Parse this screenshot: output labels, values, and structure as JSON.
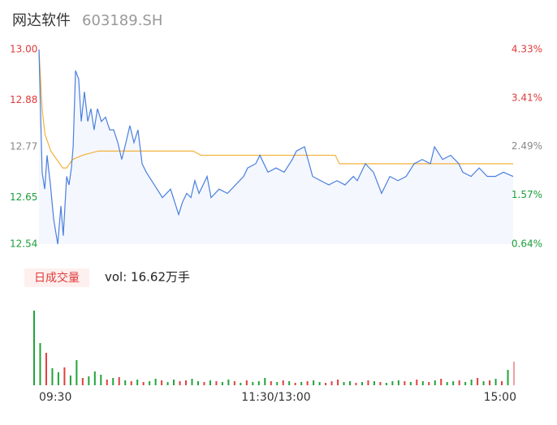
{
  "header": {
    "name": "网达软件",
    "code": "603189.SH"
  },
  "chart_data": [
    {
      "type": "line",
      "xlim": [
        0,
        240
      ],
      "xticks": [
        {
          "value": 0,
          "label": "09:30"
        },
        {
          "value": 120,
          "label": "11:30/13:00"
        },
        {
          "value": 240,
          "label": "15:00"
        }
      ],
      "ylim": [
        12.54,
        13.0
      ],
      "yticks": [
        {
          "value": 13.0,
          "label": "13.00"
        },
        12.88,
        12.77,
        12.65,
        12.54
      ],
      "ytick_colors": [
        "#e03a3a",
        "#e03a3a",
        "#888888",
        "#1a9e3a",
        "#1a9e3a"
      ],
      "y2lim": [
        0.64,
        4.33
      ],
      "y2ticks": [
        {
          "value": 4.33,
          "label": "4.33%"
        },
        {
          "value": 3.41,
          "label": "3.41%"
        },
        {
          "value": 2.49,
          "label": "2.49%"
        },
        {
          "value": 1.57,
          "label": "1.57%"
        },
        {
          "value": 0.64,
          "label": "0.64%"
        }
      ],
      "fill": "#f4f7fd",
      "lines": [
        {
          "color": "#4a7fe0",
          "x": [
            0,
            1.6,
            2.9,
            4.1,
            5.8,
            7.4,
            9.5,
            11.1,
            12.3,
            14.0,
            15.2,
            16.4,
            17.3,
            18.5,
            20.1,
            21.4,
            23.0,
            24.7,
            26.3,
            27.9,
            29.6,
            31.6,
            33.7,
            35.8,
            37.8,
            39.9,
            41.9,
            44.0,
            46.0,
            48.1,
            50.1,
            52.2,
            54.3,
            58.4,
            62.5,
            66.6,
            70.7,
            72.7,
            74.8,
            76.9,
            78.9,
            81.0,
            85.1,
            87.1,
            91.2,
            95.4,
            99.5,
            103.6,
            105.6,
            109.7,
            111.8,
            115.9,
            120.0,
            124.1,
            128.2,
            130.3,
            134.4,
            138.5,
            142.6,
            146.7,
            150.8,
            154.9,
            159.1,
            161.1,
            165.2,
            169.3,
            173.4,
            177.6,
            181.7,
            185.8,
            189.9,
            194.0,
            198.1,
            200.2,
            204.3,
            208.4,
            212.5,
            214.5,
            218.7,
            222.8,
            226.9,
            231.0,
            235.1,
            240
          ],
          "values": [
            13.0,
            12.71,
            12.67,
            12.75,
            12.68,
            12.6,
            12.54,
            12.63,
            12.56,
            12.7,
            12.68,
            12.72,
            12.77,
            12.95,
            12.93,
            12.83,
            12.9,
            12.83,
            12.86,
            12.81,
            12.86,
            12.83,
            12.84,
            12.81,
            12.81,
            12.78,
            12.74,
            12.78,
            12.82,
            12.78,
            12.81,
            12.73,
            12.71,
            12.68,
            12.65,
            12.67,
            12.61,
            12.64,
            12.66,
            12.65,
            12.69,
            12.66,
            12.7,
            12.65,
            12.67,
            12.66,
            12.68,
            12.7,
            12.72,
            12.73,
            12.75,
            12.71,
            12.72,
            12.71,
            12.74,
            12.76,
            12.77,
            12.7,
            12.69,
            12.68,
            12.69,
            12.68,
            12.7,
            12.69,
            12.73,
            12.71,
            12.66,
            12.7,
            12.69,
            12.7,
            12.73,
            12.74,
            12.73,
            12.77,
            12.74,
            12.75,
            12.73,
            12.71,
            12.7,
            12.72,
            12.7,
            12.7,
            12.71,
            12.7
          ]
        },
        {
          "color": "#f2b23a",
          "x": [
            0,
            1.6,
            3,
            6,
            9,
            12,
            14,
            17,
            22,
            30,
            78,
            82,
            150,
            152,
            240
          ],
          "values": [
            13.0,
            12.86,
            12.8,
            12.76,
            12.74,
            12.72,
            12.72,
            12.74,
            12.75,
            12.76,
            12.76,
            12.75,
            12.75,
            12.73,
            12.73
          ]
        }
      ]
    },
    {
      "type": "bar",
      "title": "日成交量",
      "subtitle": "vol: 16.62万手",
      "ylim": [
        0,
        9200
      ],
      "values": [
        9200,
        5200,
        4000,
        2100,
        1600,
        2200,
        1200,
        3100,
        900,
        1100,
        1700,
        1300,
        700,
        900,
        1000,
        600,
        500,
        700,
        400,
        500,
        800,
        600,
        400,
        700,
        500,
        600,
        800,
        500,
        400,
        600,
        500,
        400,
        700,
        500,
        300,
        600,
        400,
        500,
        900,
        500,
        400,
        600,
        500,
        300,
        400,
        500,
        600,
        400,
        300,
        500,
        700,
        400,
        500,
        300,
        400,
        600,
        500,
        400,
        300,
        500,
        600,
        500,
        400,
        700,
        500,
        400,
        600,
        800,
        400,
        500,
        600,
        400,
        700,
        900,
        500,
        600,
        800,
        500,
        1900,
        2900
      ],
      "colors": [
        "#22a33a",
        "#22a33a",
        "#e0403f",
        "#22a33a",
        "#22a33a",
        "#e0403f",
        "#22a33a",
        "#22a33a",
        "#e0403f",
        "#22a33a",
        "#22a33a",
        "#22a33a",
        "#e0403f",
        "#22a33a",
        "#e0403f",
        "#22a33a",
        "#e0403f",
        "#22a33a",
        "#e0403f",
        "#22a33a",
        "#22a33a",
        "#e0403f",
        "#22a33a",
        "#22a33a",
        "#e0403f",
        "#e0403f",
        "#22a33a",
        "#22a33a",
        "#e0403f",
        "#22a33a",
        "#e0403f",
        "#22a33a",
        "#22a33a",
        "#e0403f",
        "#22a33a",
        "#e0403f",
        "#22a33a",
        "#22a33a",
        "#22a33a",
        "#e0403f",
        "#22a33a",
        "#e0403f",
        "#22a33a",
        "#e0403f",
        "#22a33a",
        "#e0403f",
        "#22a33a",
        "#22a33a",
        "#e0403f",
        "#e0403f",
        "#e0403f",
        "#22a33a",
        "#22a33a",
        "#e0403f",
        "#22a33a",
        "#e0403f",
        "#22a33a",
        "#e0403f",
        "#22a33a",
        "#22a33a",
        "#22a33a",
        "#e0403f",
        "#22a33a",
        "#e0403f",
        "#22a33a",
        "#e0403f",
        "#22a33a",
        "#e0403f",
        "#22a33a",
        "#22a33a",
        "#e0403f",
        "#22a33a",
        "#22a33a",
        "#e0403f",
        "#22a33a",
        "#e0403f",
        "#22a33a",
        "#e0403f",
        "#22a33a",
        "#f0a0a0"
      ]
    }
  ]
}
